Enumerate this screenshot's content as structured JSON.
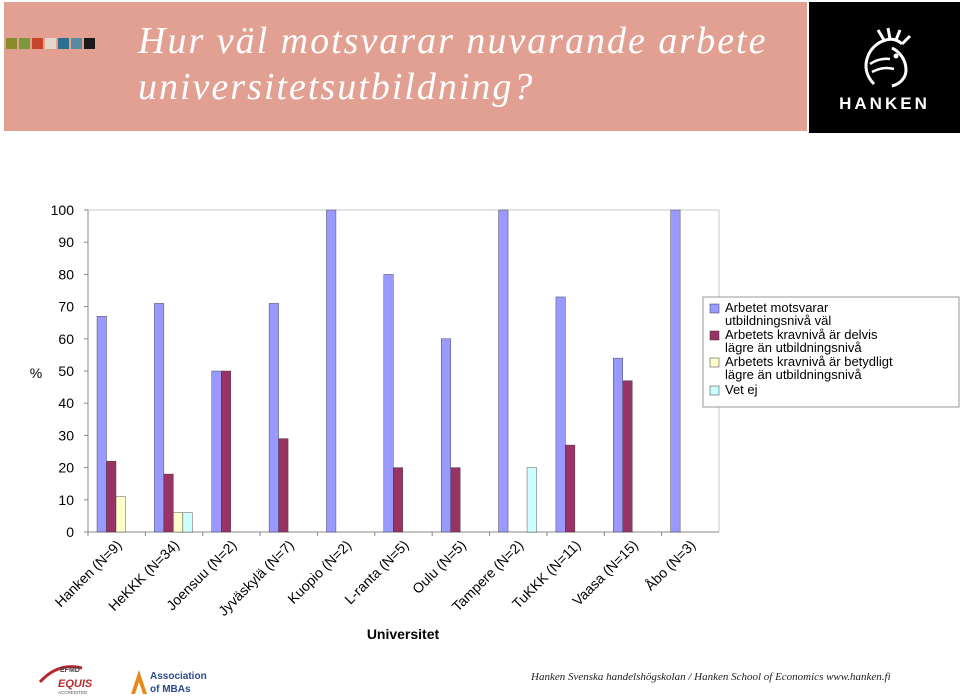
{
  "header": {
    "title": "Hur väl motsvarar nuvarande arbete universitetsutbildning?",
    "logo_text": "HANKEN",
    "swatch_colors": [
      "#8b8b2a",
      "#7a9a3a",
      "#c8452d",
      "#e6d6c8",
      "#2e6e8e",
      "#5a8aa0",
      "#1a1a1a"
    ]
  },
  "footer": {
    "text": "Hanken Svenska handelshögskolan / Hanken School of Economics www.hanken.fi",
    "badge_equis": "EQUIS",
    "badge_efmd": "EFMD",
    "badge_equis_sub": "ACCREDITED",
    "badge_amba_line1": "Association",
    "badge_amba_line2": "of MBAs"
  },
  "chart_data": {
    "type": "bar",
    "ylabel": "%",
    "xlabel": "Universitet",
    "ylim": [
      0,
      100
    ],
    "yticks": [
      0,
      10,
      20,
      30,
      40,
      50,
      60,
      70,
      80,
      90,
      100
    ],
    "grid": false,
    "legend_position": "right",
    "categories": [
      "Hanken (N=9)",
      "HeKKK (N=34)",
      "Joensuu (N=2)",
      "Jyväskylä (N=7)",
      "Kuopio (N=2)",
      "L-ranta (N=5)",
      "Oulu (N=5)",
      "Tampere (N=2)",
      "TuKKK (N=11)",
      "Vaasa (N=15)",
      "Åbo (N=3)"
    ],
    "series": [
      {
        "name": "Arbetet motsvarar utbildningsnivå väl",
        "color": "#9999ff",
        "values": [
          67,
          71,
          50,
          71,
          100,
          80,
          60,
          100,
          73,
          54,
          100
        ]
      },
      {
        "name": "Arbetets kravnivå är delvis lägre än utbildningsnivå",
        "color": "#993366",
        "values": [
          22,
          18,
          50,
          29,
          0,
          20,
          20,
          0,
          27,
          47,
          0
        ]
      },
      {
        "name": "Arbetets kravnivå är betydligt lägre än utbildningsnivå",
        "color": "#ffffcc",
        "values": [
          11,
          6,
          0,
          0,
          0,
          0,
          0,
          0,
          0,
          0,
          0
        ]
      },
      {
        "name": "Vet ej",
        "color": "#ccffff",
        "values": [
          0,
          6,
          0,
          0,
          0,
          0,
          0,
          20,
          0,
          0,
          0
        ]
      }
    ]
  }
}
